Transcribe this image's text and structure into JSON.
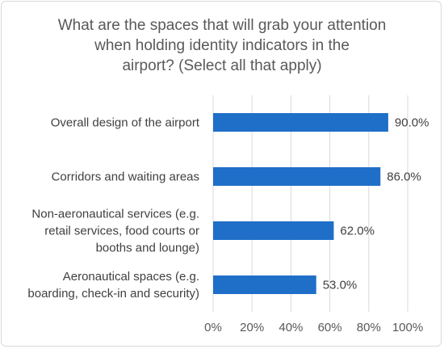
{
  "chart_data": {
    "type": "bar",
    "orientation": "horizontal",
    "title": "What are the spaces that will grab your attention\nwhen holding identity indicators in the\nairport? (Select all that apply)",
    "categories": [
      "Overall design of the airport",
      "Corridors and waiting areas",
      "Non-aeronautical services (e.g.\nretail services, food courts or\nbooths and lounge)",
      "Aeronautical spaces (e.g.\nboarding, check-in and security)"
    ],
    "values": [
      90.0,
      86.0,
      62.0,
      53.0
    ],
    "data_labels": [
      "90.0%",
      "86.0%",
      "62.0%",
      "53.0%"
    ],
    "xlim": [
      0,
      100
    ],
    "x_ticks": [
      "0%",
      "20%",
      "40%",
      "60%",
      "80%",
      "100%"
    ],
    "xlabel": "",
    "ylabel": "",
    "grid": true,
    "legend": "none",
    "bar_color": "#1f6fc8",
    "grid_color": "#d9d9d9"
  }
}
